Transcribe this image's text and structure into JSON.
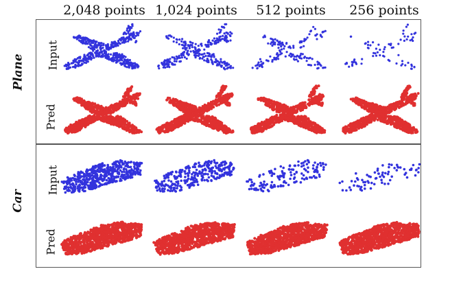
{
  "columns": [
    "2,048 points",
    "1,024 points",
    "512 points",
    "256 points"
  ],
  "categories": [
    "Plane",
    "Car"
  ],
  "rows": [
    "Input",
    "Pred"
  ],
  "colors": {
    "input": "#3333dd",
    "pred": "#e03030"
  },
  "point_density": [
    1.0,
    0.55,
    0.28,
    0.14
  ]
}
